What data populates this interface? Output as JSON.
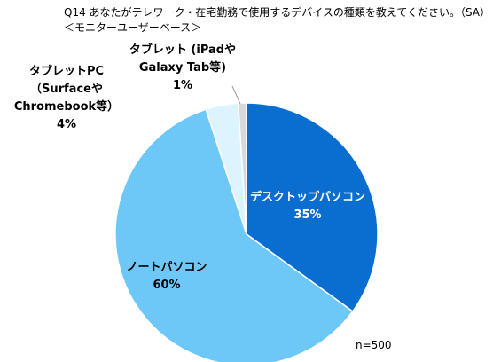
{
  "chart_data": {
    "type": "pie",
    "title": "Q14 あなたがテレワーク・在宅勤務で使用するデバイスの種類を教えてください。（SA）",
    "subtitle": "＜モニターユーザーベース＞",
    "note": "n=500",
    "start_angle_deg": 0,
    "direction": "clockwise",
    "slices": [
      {
        "label": "デスクトップパソコン",
        "display_value": "35%",
        "value": 35,
        "color": "#0A6ED1"
      },
      {
        "label": "ノートパソコン",
        "display_value": "60%",
        "value": 60,
        "color": "#6DC8F8"
      },
      {
        "label": "タブレットPC（Surfaceや Chromebook等）",
        "display_value": "4%",
        "value": 4,
        "color": "#DDF3FD"
      },
      {
        "label": "タブレット (iPadや Galaxy Tab等)",
        "display_value": "1%",
        "value": 1,
        "color": "#D9D9D9"
      }
    ],
    "label_lines": {
      "desktop": [
        "デスクトップパソコン",
        "35%"
      ],
      "notebook": [
        "ノートパソコン",
        "60%"
      ],
      "tablet_pc": [
        "タブレットPC",
        "（Surfaceや",
        "Chromebook等）",
        "4%"
      ],
      "tablet": [
        "タブレット (iPadや",
        "Galaxy Tab等)",
        "1%"
      ]
    }
  }
}
